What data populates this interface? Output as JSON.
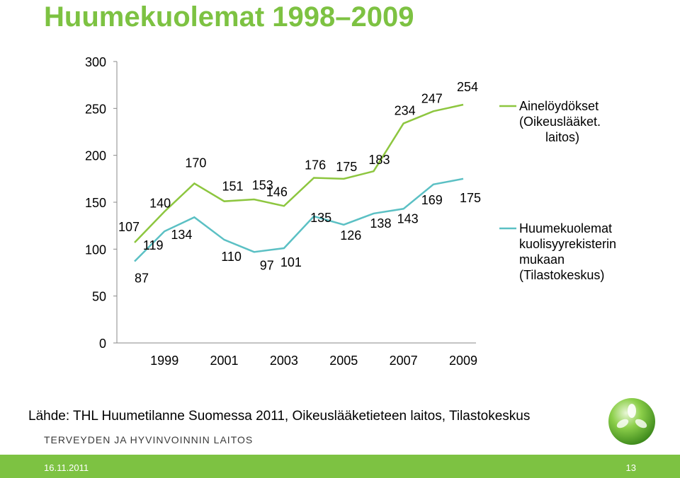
{
  "title": "Huumekuolemat 1998–2009",
  "source": "Lähde: THL Huumetilanne Suomessa 2011, Oikeuslääketieteen laitos, Tilastokeskus",
  "organization": "TERVEYDEN JA HYVINVOINNIN LAITOS",
  "footer": {
    "date": "16.11.2011",
    "page": "13"
  },
  "chart_data": {
    "type": "line",
    "x": [
      1998,
      1999,
      2000,
      2001,
      2002,
      2003,
      2004,
      2005,
      2006,
      2007,
      2008,
      2009
    ],
    "x_tick_labels": [
      "1999",
      "2001",
      "2003",
      "2005",
      "2007",
      "2009"
    ],
    "y_tick_labels": [
      "0",
      "50",
      "100",
      "150",
      "200",
      "250",
      "300"
    ],
    "ylim": [
      0,
      300
    ],
    "grid": false,
    "legend_position": "right",
    "series": [
      {
        "name": "Ainelöydökset (Oikeuslääket. laitos)",
        "legend_lines": [
          "Ainelöydökset",
          "(Oikeuslääket.",
          "laitos)"
        ],
        "color": "#8dc63f",
        "values": [
          107,
          140,
          170,
          151,
          153,
          146,
          176,
          175,
          183,
          234,
          247,
          254
        ]
      },
      {
        "name": "Huumekuolemat kuolisyyrekisterin mukaan (Tilastokeskus)",
        "legend_lines": [
          "Huumekuolemat",
          "kuolisyyrekisterin",
          "mukaan",
          "(Tilastokeskus)"
        ],
        "color": "#5bc0c4",
        "values": [
          87,
          119,
          134,
          110,
          97,
          101,
          135,
          126,
          138,
          143,
          169,
          175
        ]
      }
    ]
  }
}
